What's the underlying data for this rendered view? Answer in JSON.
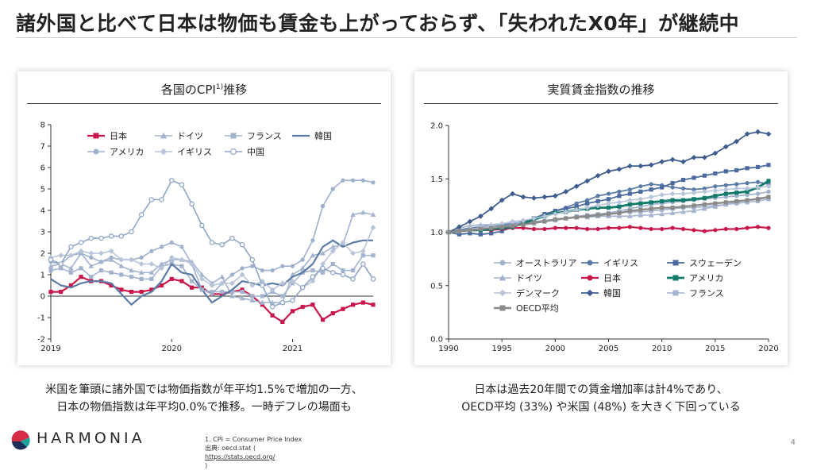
{
  "header": {
    "title": "諸外国と比べて日本は物価も賃金も上がっておらず、「失われたX0年」が継続中"
  },
  "left_panel": {
    "title": "各国のCPI",
    "title_sup": "1)",
    "title_suffix": "推移",
    "caption_lines": [
      "米国を筆頭に諸外国では物価指数が年平均1.5%で増加の一方、",
      "日本の物価指数は年平均0.0%で推移。一時デフレの場面も"
    ]
  },
  "right_panel": {
    "title": "実質賃金指数の推移",
    "caption_lines": [
      "日本は過去20年間での賃金増加率は計4%であり、",
      "OECD平均 (33%) や米国 (48%) を大きく下回っている"
    ]
  },
  "footer": {
    "brand": "HARMONIA",
    "note1": "1. CPI = Consumer Price Index",
    "note2_prefix": "出典: oecd.stat (",
    "note2_link": "https://stats.oecd.org/",
    "note2_suffix": ")",
    "page": "4"
  },
  "colors": {
    "japan": "#c8174a",
    "brand_red": "#d62c47",
    "brand_teal": "#1ba39c",
    "brand_navy": "#1e3055"
  },
  "chart_data": [
    {
      "type": "line",
      "title": "各国のCPI1)推移",
      "xlabel": "",
      "ylabel": "",
      "x_ticks": [
        "2019",
        "2020",
        "2021"
      ],
      "y_ticks": [
        -2,
        -1,
        0,
        1,
        2,
        3,
        4,
        5,
        6,
        7,
        8
      ],
      "ylim": [
        -2,
        8
      ],
      "x_range": [
        0,
        32
      ],
      "grid": false,
      "legend_position": "top-left",
      "series": [
        {
          "name": "日本",
          "color": "#c8174a",
          "marker": "square",
          "width": 2.2,
          "values": [
            0.2,
            0.2,
            0.5,
            0.9,
            0.7,
            0.7,
            0.5,
            0.3,
            0.2,
            0.2,
            0.3,
            0.5,
            0.8,
            0.7,
            0.4,
            0.4,
            0.1,
            0.1,
            0.2,
            0.3,
            0.0,
            -0.4,
            -0.9,
            -1.2,
            -0.7,
            -0.5,
            -0.4,
            -1.1,
            -0.8,
            -0.6,
            -0.4,
            -0.3,
            -0.4
          ]
        },
        {
          "name": "ドイツ",
          "color": "#a4b4cf",
          "marker": "triangle",
          "width": 1.6,
          "values": [
            1.4,
            1.5,
            1.3,
            2.0,
            1.4,
            1.6,
            1.7,
            1.4,
            1.2,
            1.1,
            1.1,
            1.5,
            1.7,
            1.7,
            1.6,
            1.0,
            0.6,
            0.9,
            0.0,
            -0.1,
            -0.2,
            -0.3,
            -0.3,
            -0.3,
            1.0,
            1.3,
            1.9,
            2.0,
            2.3,
            2.4,
            3.8,
            3.9,
            3.8
          ]
        },
        {
          "name": "フランス",
          "color": "#a4b4cf",
          "marker": "square",
          "width": 1.6,
          "values": [
            1.2,
            1.3,
            1.1,
            1.3,
            0.9,
            1.2,
            1.1,
            1.0,
            0.9,
            0.8,
            0.8,
            1.4,
            1.5,
            1.4,
            0.7,
            0.3,
            0.2,
            0.2,
            0.2,
            0.2,
            0.0,
            0.0,
            0.2,
            0.0,
            0.6,
            1.1,
            1.2,
            1.1,
            1.5,
            1.2,
            1.2,
            1.9,
            1.9
          ]
        },
        {
          "name": "韓国",
          "color": "#5b7ba6",
          "marker": "none",
          "width": 2.2,
          "values": [
            0.8,
            0.5,
            0.4,
            0.6,
            0.7,
            0.7,
            0.6,
            0.1,
            -0.4,
            0.0,
            0.2,
            0.7,
            1.5,
            1.1,
            1.0,
            0.3,
            -0.3,
            0.0,
            0.3,
            0.7,
            0.6,
            0.5,
            0.6,
            0.5,
            0.9,
            1.1,
            1.5,
            2.3,
            2.6,
            2.3,
            2.5,
            2.6,
            2.6
          ]
        },
        {
          "name": "アメリカ",
          "color": "#9eb0cc",
          "marker": "circle",
          "width": 1.6,
          "values": [
            1.6,
            1.5,
            1.9,
            2.0,
            1.8,
            1.6,
            1.8,
            1.7,
            1.7,
            1.8,
            2.1,
            2.3,
            2.5,
            2.3,
            1.5,
            0.3,
            0.1,
            0.6,
            1.0,
            1.3,
            1.4,
            1.2,
            1.2,
            1.4,
            1.4,
            1.7,
            2.6,
            4.2,
            5.0,
            5.4,
            5.4,
            5.4,
            5.3
          ]
        },
        {
          "name": "イギリス",
          "color": "#b8c4d9",
          "marker": "diamond",
          "width": 1.6,
          "values": [
            1.8,
            1.9,
            1.9,
            2.1,
            2.0,
            2.0,
            2.1,
            1.7,
            1.7,
            1.5,
            1.5,
            1.3,
            1.8,
            1.7,
            1.5,
            0.8,
            0.5,
            0.6,
            0.6,
            1.0,
            0.5,
            0.7,
            0.3,
            0.6,
            0.7,
            0.4,
            0.7,
            1.5,
            2.1,
            2.5,
            2.0,
            2.1,
            3.2
          ]
        },
        {
          "name": "中国",
          "color": "#8fa6c6",
          "marker": "ring",
          "width": 1.6,
          "values": [
            1.7,
            1.5,
            2.3,
            2.5,
            2.7,
            2.7,
            2.8,
            2.8,
            3.0,
            3.8,
            4.5,
            4.5,
            5.4,
            5.2,
            4.3,
            3.3,
            2.5,
            2.4,
            2.7,
            2.4,
            1.7,
            0.5,
            -0.5,
            -0.3,
            -0.2,
            0.4,
            0.9,
            1.3,
            1.1,
            1.0,
            0.8,
            1.5,
            0.8
          ]
        }
      ]
    },
    {
      "type": "line",
      "title": "実質賃金指数の推移",
      "xlabel": "",
      "ylabel": "",
      "x_ticks": [
        "1990",
        "1995",
        "2000",
        "2005",
        "2010",
        "2015",
        "2020"
      ],
      "y_ticks": [
        "0.0",
        "0.5",
        "1.0",
        "1.5",
        "2.0"
      ],
      "ylim": [
        0,
        2.0
      ],
      "x_range": [
        1990,
        2020
      ],
      "grid": false,
      "legend_position": "bottom-center",
      "series": [
        {
          "name": "オーストラリア",
          "color": "#9eb0cc",
          "marker": "circle",
          "width": 1.6,
          "values": [
            1.0,
            1.01,
            1.03,
            1.05,
            1.06,
            1.06,
            1.07,
            1.09,
            1.1,
            1.11,
            1.12,
            1.13,
            1.14,
            1.15,
            1.17,
            1.18,
            1.2,
            1.22,
            1.24,
            1.26,
            1.27,
            1.28,
            1.29,
            1.3,
            1.31,
            1.32,
            1.33,
            1.34,
            1.35,
            1.36,
            1.38
          ]
        },
        {
          "name": "イギリス",
          "color": "#5b7ba6",
          "marker": "circle",
          "width": 1.8,
          "values": [
            1.0,
            1.02,
            1.04,
            1.05,
            1.06,
            1.07,
            1.08,
            1.1,
            1.13,
            1.16,
            1.2,
            1.23,
            1.27,
            1.3,
            1.34,
            1.36,
            1.38,
            1.4,
            1.43,
            1.45,
            1.44,
            1.42,
            1.41,
            1.4,
            1.41,
            1.43,
            1.44,
            1.45,
            1.46,
            1.47,
            1.45
          ]
        },
        {
          "name": "スウェーデン",
          "color": "#4a6aa0",
          "marker": "square",
          "width": 1.8,
          "values": [
            1.0,
            0.98,
            0.99,
            0.98,
            0.99,
            1.01,
            1.05,
            1.09,
            1.13,
            1.17,
            1.2,
            1.22,
            1.24,
            1.27,
            1.29,
            1.31,
            1.34,
            1.36,
            1.38,
            1.4,
            1.42,
            1.46,
            1.49,
            1.51,
            1.53,
            1.55,
            1.57,
            1.58,
            1.6,
            1.61,
            1.63
          ]
        },
        {
          "name": "ドイツ",
          "color": "#a4b4cf",
          "marker": "triangle",
          "width": 1.6,
          "values": [
            1.0,
            1.04,
            1.06,
            1.07,
            1.07,
            1.08,
            1.09,
            1.09,
            1.1,
            1.11,
            1.12,
            1.13,
            1.14,
            1.14,
            1.15,
            1.15,
            1.15,
            1.15,
            1.16,
            1.16,
            1.17,
            1.18,
            1.19,
            1.2,
            1.22,
            1.24,
            1.26,
            1.28,
            1.3,
            1.32,
            1.33
          ]
        },
        {
          "name": "日本",
          "color": "#c8174a",
          "marker": "circle",
          "width": 2.2,
          "values": [
            1.0,
            1.01,
            1.02,
            1.02,
            1.02,
            1.03,
            1.04,
            1.04,
            1.03,
            1.03,
            1.04,
            1.04,
            1.04,
            1.03,
            1.03,
            1.04,
            1.04,
            1.05,
            1.04,
            1.03,
            1.03,
            1.04,
            1.03,
            1.02,
            1.01,
            1.02,
            1.03,
            1.03,
            1.04,
            1.05,
            1.04
          ]
        },
        {
          "name": "アメリカ",
          "color": "#127a6a",
          "marker": "square",
          "width": 2.8,
          "values": [
            1.0,
            1.01,
            1.02,
            1.02,
            1.03,
            1.04,
            1.05,
            1.08,
            1.12,
            1.15,
            1.18,
            1.19,
            1.21,
            1.22,
            1.23,
            1.23,
            1.24,
            1.26,
            1.27,
            1.28,
            1.29,
            1.3,
            1.3,
            1.31,
            1.32,
            1.34,
            1.36,
            1.37,
            1.38,
            1.42,
            1.48
          ]
        },
        {
          "name": "デンマーク",
          "color": "#b8c4d9",
          "marker": "diamond",
          "width": 1.6,
          "values": [
            1.0,
            1.01,
            1.03,
            1.04,
            1.06,
            1.08,
            1.1,
            1.11,
            1.13,
            1.15,
            1.17,
            1.19,
            1.21,
            1.23,
            1.25,
            1.27,
            1.28,
            1.3,
            1.31,
            1.33,
            1.35,
            1.36,
            1.36,
            1.37,
            1.38,
            1.39,
            1.4,
            1.41,
            1.41,
            1.42,
            1.43
          ]
        },
        {
          "name": "韓国",
          "color": "#3e5d8e",
          "marker": "diamond",
          "width": 1.8,
          "values": [
            1.0,
            1.05,
            1.1,
            1.15,
            1.22,
            1.3,
            1.36,
            1.33,
            1.32,
            1.33,
            1.34,
            1.38,
            1.43,
            1.48,
            1.53,
            1.57,
            1.59,
            1.62,
            1.62,
            1.63,
            1.66,
            1.68,
            1.66,
            1.7,
            1.7,
            1.74,
            1.8,
            1.85,
            1.92,
            1.94,
            1.92
          ]
        },
        {
          "name": "フランス",
          "color": "#a4b4cf",
          "marker": "square",
          "width": 1.6,
          "values": [
            1.0,
            1.01,
            1.02,
            1.03,
            1.04,
            1.05,
            1.06,
            1.07,
            1.08,
            1.1,
            1.11,
            1.13,
            1.15,
            1.16,
            1.17,
            1.18,
            1.18,
            1.19,
            1.19,
            1.2,
            1.21,
            1.22,
            1.23,
            1.23,
            1.24,
            1.25,
            1.26,
            1.27,
            1.28,
            1.29,
            1.31
          ]
        },
        {
          "name": "OECD平均",
          "color": "#8a8a8a",
          "marker": "square",
          "width": 2.4,
          "values": [
            1.0,
            1.01,
            1.02,
            1.03,
            1.04,
            1.05,
            1.06,
            1.07,
            1.09,
            1.1,
            1.12,
            1.13,
            1.14,
            1.15,
            1.16,
            1.17,
            1.18,
            1.2,
            1.21,
            1.22,
            1.23,
            1.23,
            1.24,
            1.25,
            1.26,
            1.27,
            1.28,
            1.29,
            1.3,
            1.31,
            1.33
          ]
        }
      ]
    }
  ]
}
